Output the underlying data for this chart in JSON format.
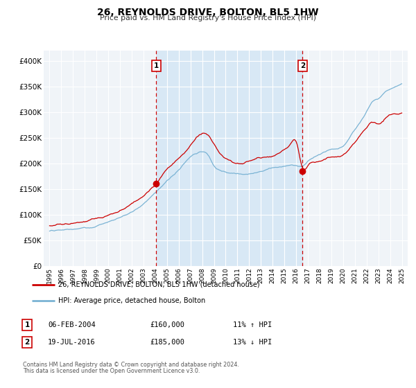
{
  "title": "26, REYNOLDS DRIVE, BOLTON, BL5 1HW",
  "subtitle": "Price paid vs. HM Land Registry's House Price Index (HPI)",
  "background_color": "#ffffff",
  "plot_bg_color": "#f0f4f8",
  "grid_color": "#ffffff",
  "red_line_color": "#cc0000",
  "blue_line_color": "#7ab3d4",
  "marker1_date": 2004.09,
  "marker1_value": 160000,
  "marker2_date": 2016.54,
  "marker2_value": 185000,
  "legend_line1": "26, REYNOLDS DRIVE, BOLTON, BL5 1HW (detached house)",
  "legend_line2": "HPI: Average price, detached house, Bolton",
  "table_row1": [
    "1",
    "06-FEB-2004",
    "£160,000",
    "11% ↑ HPI"
  ],
  "table_row2": [
    "2",
    "19-JUL-2016",
    "£185,000",
    "13% ↓ HPI"
  ],
  "footnote1": "Contains HM Land Registry data © Crown copyright and database right 2024.",
  "footnote2": "This data is licensed under the Open Government Licence v3.0.",
  "ylim": [
    0,
    420000
  ],
  "xlim_start": 1994.5,
  "xlim_end": 2025.5,
  "shaded_region_color": "#d8e8f5",
  "dashed_line_color": "#cc0000",
  "yticks": [
    0,
    50000,
    100000,
    150000,
    200000,
    250000,
    300000,
    350000,
    400000
  ],
  "ytick_labels": [
    "£0",
    "£50K",
    "£100K",
    "£150K",
    "£200K",
    "£250K",
    "£300K",
    "£350K",
    "£400K"
  ]
}
